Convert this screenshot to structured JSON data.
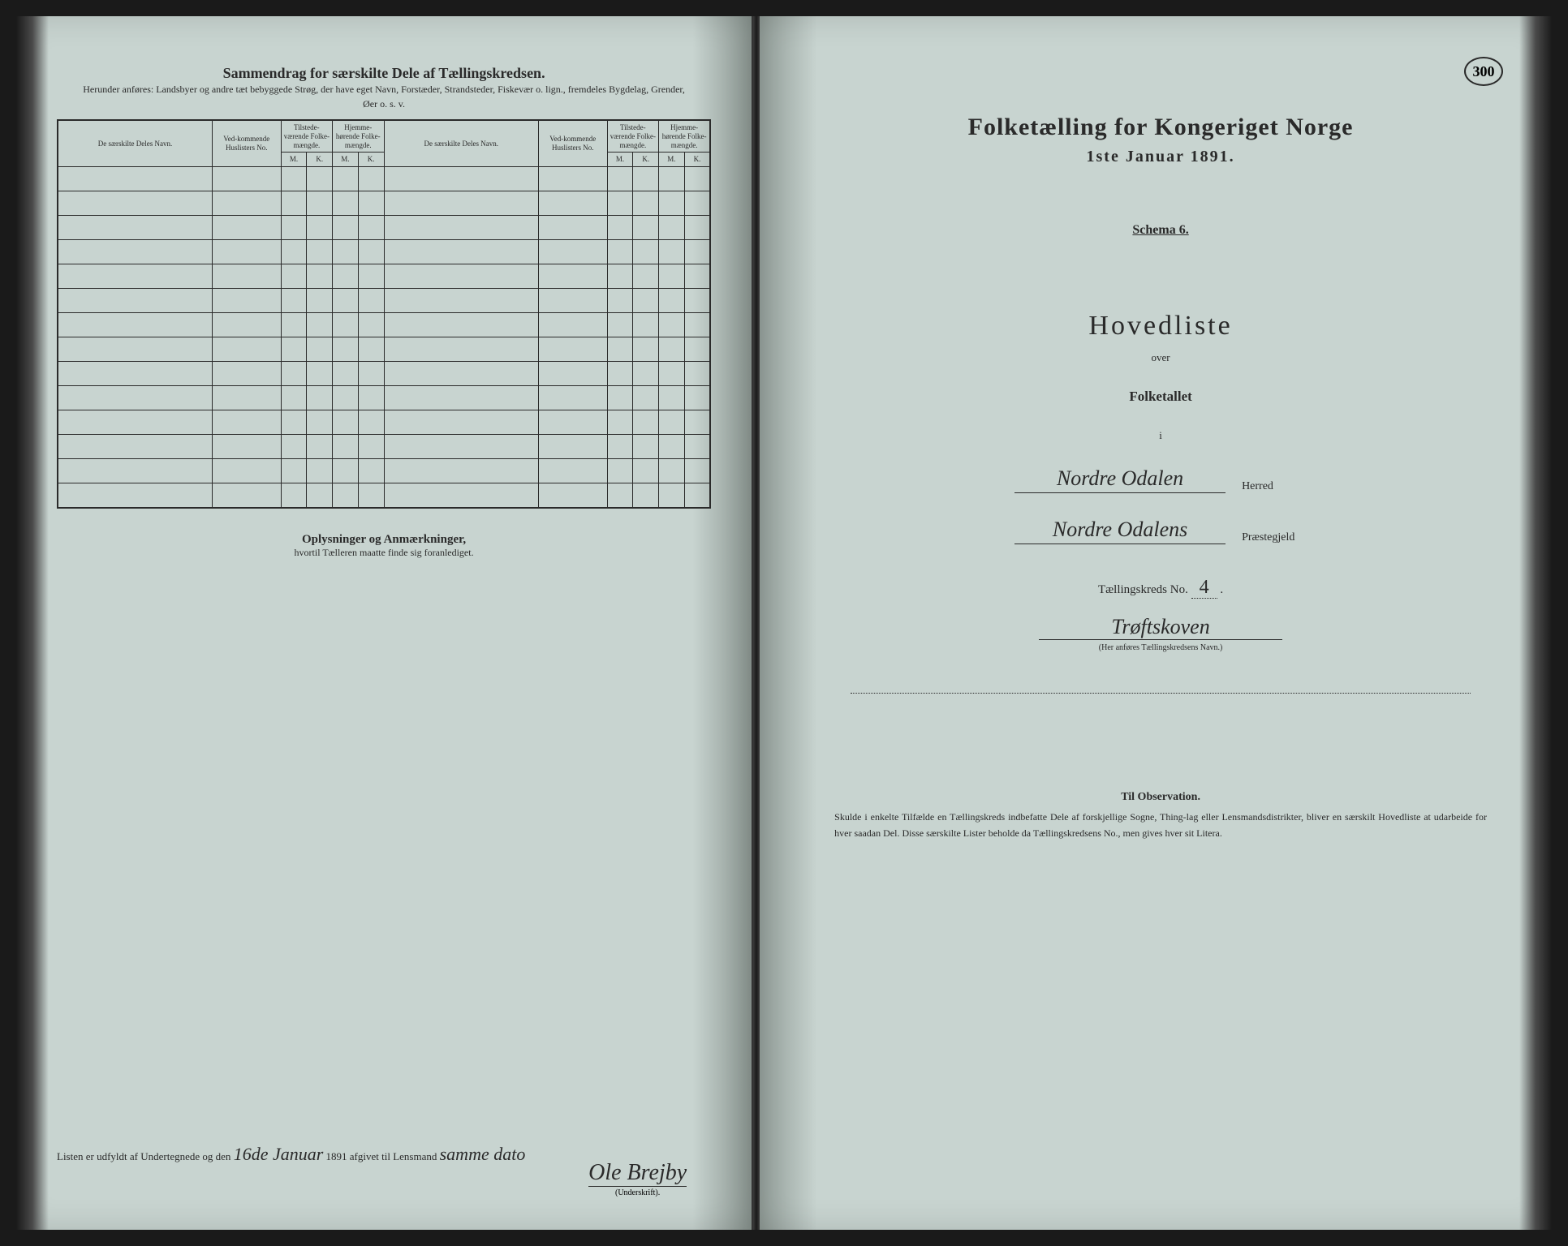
{
  "left": {
    "title": "Sammendrag for særskilte Dele af Tællingskredsen.",
    "subtitle": "Herunder anføres: Landsbyer og andre tæt bebyggede Strøg, der have eget Navn, Forstæder, Strandsteder, Fiskevær o. lign., fremdeles Bygdelag, Grender, Øer o. s. v.",
    "table": {
      "col_name": "De særskilte Deles Navn.",
      "col_husl": "Ved-kommende Huslisters No.",
      "col_tilstede": "Tilstede-værende Folke-mængde.",
      "col_hjemme": "Hjemme-hørende Folke-mængde.",
      "m": "M.",
      "k": "K.",
      "row_count": 14
    },
    "oplys_title": "Oplysninger og Anmærkninger,",
    "oplys_sub": "hvortil Tælleren maatte finde sig foranlediget.",
    "sig_prefix": "Listen er udfyldt af Undertegnede og den",
    "sig_date_hand": "16de Januar",
    "sig_year": "1891 afgivet til Lensmand",
    "sig_hand2": "samme dato",
    "sig_name": "Ole Brejby",
    "sig_under": "(Underskrift)."
  },
  "right": {
    "page_no": "300",
    "main_title": "Folketælling for Kongeriget Norge",
    "main_date": "1ste Januar 1891.",
    "schema": "Schema 6.",
    "hovedliste": "Hovedliste",
    "over": "over",
    "folketallet": "Folketallet",
    "i": "i",
    "herred_val": "Nordre Odalen",
    "herred_lbl": "Herred",
    "praeste_val": "Nordre Odalens",
    "praeste_lbl": "Præstegjeld",
    "tk_label": "Tællingskreds No.",
    "tk_no": "4",
    "tk_name": "Trøftskoven",
    "tk_hint": "(Her anføres Tællingskredsens Navn.)",
    "obs_title": "Til Observation.",
    "obs_text": "Skulde i enkelte Tilfælde en Tællingskreds indbefatte Dele af forskjellige Sogne, Thing-lag eller Lensmandsdistrikter, bliver en særskilt Hovedliste at udarbeide for hver saadan Del. Disse særskilte Lister beholde da Tællingskredsens No., men gives hver sit Litera."
  },
  "colors": {
    "page_bg": "#c8d4d0",
    "ink": "#2a2a2a",
    "binding": "#1a1a1a"
  }
}
